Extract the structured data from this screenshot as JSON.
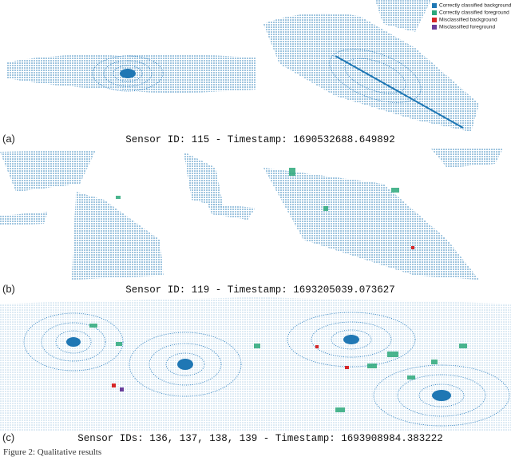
{
  "legend": [
    {
      "label": "Correctly classified background",
      "color": "#1f77b4"
    },
    {
      "label": "Correctly classified foreground",
      "color": "#2ca87a"
    },
    {
      "label": "Misclassified background",
      "color": "#d62728"
    },
    {
      "label": "Misclassified foreground",
      "color": "#6a3d9a"
    }
  ],
  "panels": [
    {
      "label": "(a)",
      "caption": "Sensor ID: 115 - Timestamp: 1690532688.649892"
    },
    {
      "label": "(b)",
      "caption": "Sensor ID: 119 - Timestamp: 1693205039.073627"
    },
    {
      "label": "(c)",
      "caption": "Sensor IDs: 136, 137, 138, 139 - Timestamp: 1693908984.383222"
    }
  ],
  "figure_caption": "Figure 2: Qualitative results"
}
